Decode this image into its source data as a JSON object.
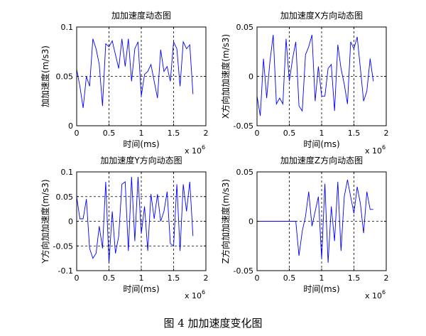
{
  "caption": "图 4  加加速度变化图",
  "colors": {
    "line": "#0000ff",
    "axis": "#000000",
    "grid": "#000000"
  },
  "chart_data": [
    {
      "type": "line",
      "title": "加加速度动态图",
      "xlabel": "时间(ms)",
      "ylabel": "加加速度(m/s3)",
      "x_multiplier": "x 10",
      "x_exponent": "6",
      "xlim": [
        0,
        2
      ],
      "ylim": [
        0,
        0.1
      ],
      "xticks": [
        0,
        0.5,
        1,
        1.5,
        2
      ],
      "xtick_labels": [
        "0",
        "0.5",
        "1",
        "1.5",
        "2"
      ],
      "yticks": [
        0,
        0.05,
        0.1
      ],
      "ytick_labels": [
        "0",
        "0.05",
        "0.1"
      ],
      "grid": true,
      "series": [
        {
          "x": [
            0,
            0.05,
            0.1,
            0.15,
            0.2,
            0.25,
            0.3,
            0.35,
            0.4,
            0.45,
            0.5,
            0.55,
            0.6,
            0.65,
            0.7,
            0.75,
            0.8,
            0.85,
            0.9,
            0.95,
            1.0,
            1.05,
            1.1,
            1.15,
            1.2,
            1.25,
            1.3,
            1.35,
            1.4,
            1.45,
            1.5,
            1.55,
            1.6,
            1.65,
            1.7,
            1.75,
            1.8
          ],
          "values": [
            0.057,
            0.04,
            0.018,
            0.05,
            0.04,
            0.088,
            0.078,
            0.062,
            0.02,
            0.083,
            0.08,
            0.086,
            0.072,
            0.058,
            0.088,
            0.06,
            0.088,
            0.045,
            0.078,
            0.085,
            0.03,
            0.052,
            0.055,
            0.062,
            0.045,
            0.028,
            0.077,
            0.055,
            0.06,
            0.045,
            0.085,
            0.078,
            0.04,
            0.085,
            0.078,
            0.082,
            0.032
          ]
        }
      ]
    },
    {
      "type": "line",
      "title": "加加速度X方向动态图",
      "xlabel": "时间(ms)",
      "ylabel": "X方向加加速度(m/s3)",
      "x_multiplier": "x 10",
      "x_exponent": "6",
      "xlim": [
        0,
        2
      ],
      "ylim": [
        -0.05,
        0.05
      ],
      "xticks": [
        0,
        0.5,
        1,
        1.5,
        2
      ],
      "xtick_labels": [
        "0",
        "0.5",
        "1",
        "1.5",
        "2"
      ],
      "yticks": [
        -0.05,
        0,
        0.05
      ],
      "ytick_labels": [
        "-0.05",
        "0",
        "0.05"
      ],
      "grid": true,
      "series": [
        {
          "x": [
            0,
            0.05,
            0.1,
            0.15,
            0.2,
            0.25,
            0.3,
            0.35,
            0.4,
            0.45,
            0.5,
            0.55,
            0.6,
            0.65,
            0.7,
            0.75,
            0.8,
            0.85,
            0.9,
            0.95,
            1.0,
            1.05,
            1.1,
            1.15,
            1.2,
            1.25,
            1.3,
            1.35,
            1.4,
            1.45,
            1.5,
            1.55,
            1.6,
            1.65,
            1.7,
            1.75,
            1.8
          ],
          "values": [
            -0.02,
            -0.04,
            0.018,
            -0.022,
            0.015,
            0.042,
            -0.028,
            -0.022,
            -0.028,
            0.038,
            -0.005,
            0.018,
            0.035,
            -0.03,
            -0.035,
            0.022,
            0.03,
            0.042,
            -0.025,
            0.01,
            -0.02,
            -0.02,
            0.008,
            0.012,
            -0.035,
            0.032,
            0.008,
            -0.008,
            -0.028,
            0.035,
            0.028,
            0.04,
            0.008,
            -0.025,
            -0.015,
            0.018,
            -0.005
          ]
        }
      ]
    },
    {
      "type": "line",
      "title": "加加速度Y方向动态图",
      "xlabel": "时间(ms)",
      "ylabel": "Y方向加加速度(m/s3)",
      "x_multiplier": "x 10",
      "x_exponent": "6",
      "xlim": [
        0,
        2
      ],
      "ylim": [
        -0.1,
        0.1
      ],
      "xticks": [
        0,
        0.5,
        1,
        1.5,
        2
      ],
      "xtick_labels": [
        "0",
        "0.5",
        "1",
        "1.5",
        "2"
      ],
      "yticks": [
        -0.1,
        -0.05,
        0,
        0.05,
        0.1
      ],
      "ytick_labels": [
        "-0.1",
        "-0.05",
        "0",
        "0.05",
        "0.1"
      ],
      "grid": true,
      "series": [
        {
          "x": [
            0,
            0.05,
            0.1,
            0.15,
            0.2,
            0.25,
            0.3,
            0.35,
            0.4,
            0.45,
            0.5,
            0.55,
            0.6,
            0.65,
            0.7,
            0.75,
            0.8,
            0.85,
            0.9,
            0.95,
            1.0,
            1.05,
            1.1,
            1.15,
            1.2,
            1.25,
            1.3,
            1.35,
            1.4,
            1.45,
            1.5,
            1.55,
            1.6,
            1.65,
            1.7,
            1.75,
            1.8
          ],
          "values": [
            0.05,
            0.005,
            0.005,
            0.045,
            -0.055,
            -0.075,
            -0.065,
            -0.01,
            -0.055,
            0.08,
            -0.085,
            0.02,
            -0.065,
            -0.03,
            0.075,
            0.08,
            -0.06,
            0.09,
            -0.04,
            0.09,
            -0.025,
            0.03,
            -0.06,
            0.055,
            0.005,
            0.055,
            0.0,
            0.02,
            0.06,
            -0.045,
            -0.05,
            0.075,
            -0.06,
            0.075,
            0.02,
            0.08,
            -0.03
          ]
        }
      ]
    },
    {
      "type": "line",
      "title": "加加速度Z方向动态图",
      "xlabel": "时间(ms)",
      "ylabel": "Z方向加加速度(m/s3)",
      "x_multiplier": "x 10",
      "x_exponent": "6",
      "xlim": [
        0,
        2
      ],
      "ylim": [
        -0.05,
        0.05
      ],
      "xticks": [
        0,
        0.5,
        1,
        1.5,
        2
      ],
      "xtick_labels": [
        "0",
        "0.5",
        "1",
        "1.5",
        "2"
      ],
      "yticks": [
        -0.05,
        0,
        0.05
      ],
      "ytick_labels": [
        "-0.05",
        "0",
        "0.05"
      ],
      "grid": true,
      "series": [
        {
          "x": [
            0,
            0.1,
            0.2,
            0.3,
            0.4,
            0.5,
            0.6,
            0.65,
            0.7,
            0.75,
            0.8,
            0.85,
            0.9,
            0.95,
            1.0,
            1.05,
            1.1,
            1.15,
            1.2,
            1.25,
            1.3,
            1.35,
            1.4,
            1.45,
            1.5,
            1.55,
            1.6,
            1.65,
            1.7,
            1.75,
            1.8
          ],
          "values": [
            0,
            0,
            0,
            0,
            0,
            0,
            0,
            -0.035,
            -0.01,
            0.005,
            0.03,
            -0.005,
            0.01,
            0.025,
            -0.038,
            0.038,
            -0.042,
            0.015,
            -0.02,
            0.04,
            -0.03,
            0.025,
            0.042,
            0.025,
            0.008,
            0.035,
            0.018,
            -0.012,
            0.03,
            0.012,
            0.012
          ]
        }
      ]
    }
  ]
}
